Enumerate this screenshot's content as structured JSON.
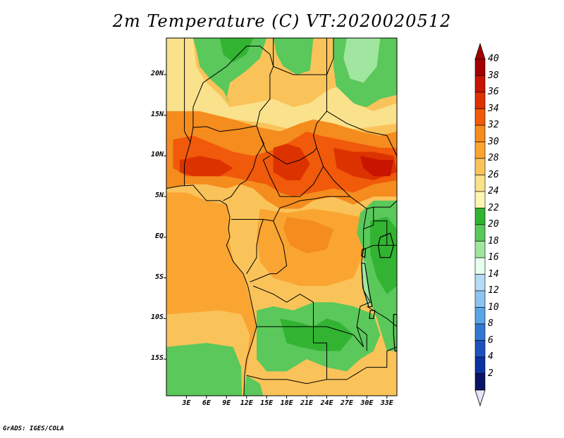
{
  "title": "2m Temperature (C) VT:2020020512",
  "credit": "GrADS: IGES/COLA",
  "map": {
    "variable": "2m Temperature",
    "units": "C",
    "valid_time": "2020020512",
    "lat_labels": [
      "20N",
      "15N",
      "10N",
      "5N",
      "EQ",
      "5S",
      "10S",
      "15S"
    ],
    "lat_values": [
      20,
      15,
      10,
      5,
      0,
      -5,
      -10,
      -15
    ],
    "lon_labels": [
      "3E",
      "6E",
      "9E",
      "12E",
      "15E",
      "18E",
      "21E",
      "24E",
      "27E",
      "30E",
      "33E"
    ],
    "lon_values": [
      3,
      6,
      9,
      12,
      15,
      18,
      21,
      24,
      27,
      30,
      33
    ],
    "lat_range": [
      -19.5,
      24.5
    ],
    "lon_range": [
      0,
      34.5
    ]
  },
  "colorbar": {
    "labels": [
      "40",
      "38",
      "36",
      "34",
      "32",
      "30",
      "28",
      "26",
      "24",
      "22",
      "20",
      "18",
      "16",
      "14",
      "12",
      "10",
      "8",
      "6",
      "4",
      "2"
    ],
    "colors": [
      "#a50000",
      "#c81400",
      "#dc3200",
      "#f05a0a",
      "#f58c1e",
      "#faa532",
      "#fac35a",
      "#fae18c",
      "#fff5b4",
      "#32b432",
      "#5ac85a",
      "#a0e6a0",
      "#e6fff0",
      "#b4dcf5",
      "#8cc3f0",
      "#5aa5e6",
      "#3278d2",
      "#1e50be",
      "#0a32a0",
      "#0a1464"
    ],
    "top_arrow_color": "#a50000",
    "bottom_arrow_color": "#e6e6fa"
  }
}
